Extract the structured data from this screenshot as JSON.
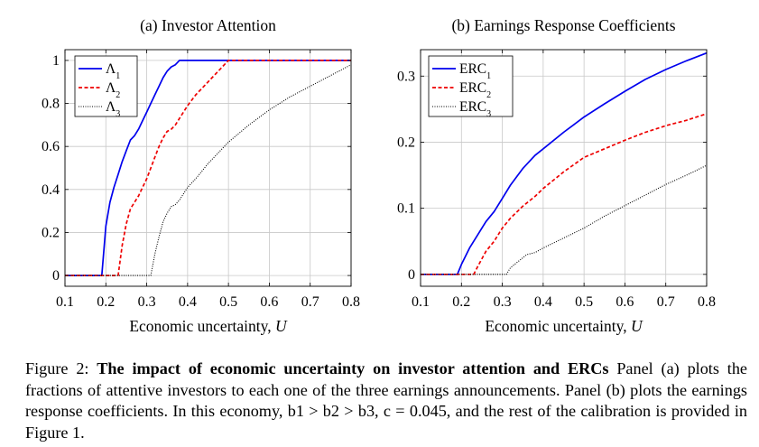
{
  "chart_data": [
    {
      "type": "line",
      "title": "(a) Investor Attention",
      "xlabel": "Economic uncertainty, U",
      "ylabel": "",
      "xlim": [
        0.1,
        0.8
      ],
      "ylim": [
        -0.05,
        1.05
      ],
      "xticks": [
        0.1,
        0.2,
        0.3,
        0.4,
        0.5,
        0.6,
        0.7,
        0.8
      ],
      "yticks": [
        0,
        0.2,
        0.4,
        0.6,
        0.8,
        1
      ],
      "xticklabels": [
        "0.1",
        "0.2",
        "0.3",
        "0.4",
        "0.5",
        "0.6",
        "0.7",
        "0.8"
      ],
      "yticklabels": [
        "0",
        "0.2",
        "0.4",
        "0.6",
        "0.8",
        "1"
      ],
      "grid": true,
      "legend_position": "top-left",
      "series": [
        {
          "name": "Λ1",
          "color": "#0000ee",
          "style": "solid",
          "points": [
            [
              0.1,
              0
            ],
            [
              0.19,
              0
            ],
            [
              0.2,
              0.23
            ],
            [
              0.21,
              0.34
            ],
            [
              0.22,
              0.41
            ],
            [
              0.23,
              0.47
            ],
            [
              0.24,
              0.53
            ],
            [
              0.25,
              0.58
            ],
            [
              0.26,
              0.63
            ],
            [
              0.27,
              0.65
            ],
            [
              0.28,
              0.68
            ],
            [
              0.29,
              0.72
            ],
            [
              0.3,
              0.76
            ],
            [
              0.31,
              0.8
            ],
            [
              0.32,
              0.84
            ],
            [
              0.33,
              0.88
            ],
            [
              0.34,
              0.92
            ],
            [
              0.35,
              0.95
            ],
            [
              0.36,
              0.97
            ],
            [
              0.37,
              0.98
            ],
            [
              0.38,
              1.0
            ],
            [
              0.8,
              1.0
            ]
          ]
        },
        {
          "name": "Λ2",
          "color": "#ee0000",
          "style": "dashed",
          "points": [
            [
              0.1,
              0
            ],
            [
              0.23,
              0
            ],
            [
              0.24,
              0.14
            ],
            [
              0.25,
              0.24
            ],
            [
              0.26,
              0.31
            ],
            [
              0.27,
              0.34
            ],
            [
              0.28,
              0.37
            ],
            [
              0.29,
              0.41
            ],
            [
              0.3,
              0.45
            ],
            [
              0.31,
              0.5
            ],
            [
              0.32,
              0.55
            ],
            [
              0.33,
              0.6
            ],
            [
              0.34,
              0.64
            ],
            [
              0.35,
              0.67
            ],
            [
              0.36,
              0.68
            ],
            [
              0.37,
              0.7
            ],
            [
              0.38,
              0.73
            ],
            [
              0.4,
              0.79
            ],
            [
              0.42,
              0.84
            ],
            [
              0.44,
              0.88
            ],
            [
              0.46,
              0.92
            ],
            [
              0.48,
              0.96
            ],
            [
              0.5,
              1.0
            ],
            [
              0.8,
              1.0
            ]
          ]
        },
        {
          "name": "Λ3",
          "color": "#000000",
          "style": "dotted",
          "points": [
            [
              0.1,
              0
            ],
            [
              0.31,
              0
            ],
            [
              0.32,
              0.1
            ],
            [
              0.33,
              0.18
            ],
            [
              0.34,
              0.25
            ],
            [
              0.35,
              0.29
            ],
            [
              0.36,
              0.32
            ],
            [
              0.37,
              0.33
            ],
            [
              0.38,
              0.35
            ],
            [
              0.4,
              0.41
            ],
            [
              0.42,
              0.45
            ],
            [
              0.45,
              0.52
            ],
            [
              0.5,
              0.62
            ],
            [
              0.55,
              0.7
            ],
            [
              0.6,
              0.77
            ],
            [
              0.65,
              0.83
            ],
            [
              0.7,
              0.88
            ],
            [
              0.75,
              0.93
            ],
            [
              0.8,
              0.98
            ]
          ]
        }
      ]
    },
    {
      "type": "line",
      "title": "(b) Earnings Response Coefficients",
      "xlabel": "Economic uncertainty, U",
      "ylabel": "",
      "xlim": [
        0.1,
        0.8
      ],
      "ylim": [
        -0.018,
        0.34
      ],
      "xticks": [
        0.1,
        0.2,
        0.3,
        0.4,
        0.5,
        0.6,
        0.7,
        0.8
      ],
      "yticks": [
        0,
        0.1,
        0.2,
        0.3
      ],
      "xticklabels": [
        "0.1",
        "0.2",
        "0.3",
        "0.4",
        "0.5",
        "0.6",
        "0.7",
        "0.8"
      ],
      "yticklabels": [
        "0",
        "0.1",
        "0.2",
        "0.3"
      ],
      "grid": true,
      "legend_position": "top-left",
      "series": [
        {
          "name": "ERC1",
          "color": "#0000ee",
          "style": "solid",
          "points": [
            [
              0.1,
              0
            ],
            [
              0.19,
              0
            ],
            [
              0.2,
              0.015
            ],
            [
              0.22,
              0.04
            ],
            [
              0.24,
              0.06
            ],
            [
              0.26,
              0.08
            ],
            [
              0.28,
              0.095
            ],
            [
              0.3,
              0.115
            ],
            [
              0.32,
              0.135
            ],
            [
              0.35,
              0.16
            ],
            [
              0.38,
              0.18
            ],
            [
              0.4,
              0.19
            ],
            [
              0.45,
              0.215
            ],
            [
              0.5,
              0.238
            ],
            [
              0.55,
              0.258
            ],
            [
              0.6,
              0.277
            ],
            [
              0.65,
              0.295
            ],
            [
              0.7,
              0.31
            ],
            [
              0.75,
              0.323
            ],
            [
              0.8,
              0.335
            ]
          ]
        },
        {
          "name": "ERC2",
          "color": "#ee0000",
          "style": "dashed",
          "points": [
            [
              0.1,
              0
            ],
            [
              0.23,
              0
            ],
            [
              0.24,
              0.012
            ],
            [
              0.26,
              0.035
            ],
            [
              0.28,
              0.05
            ],
            [
              0.3,
              0.07
            ],
            [
              0.32,
              0.085
            ],
            [
              0.35,
              0.103
            ],
            [
              0.38,
              0.118
            ],
            [
              0.4,
              0.13
            ],
            [
              0.45,
              0.155
            ],
            [
              0.5,
              0.177
            ],
            [
              0.55,
              0.19
            ],
            [
              0.6,
              0.203
            ],
            [
              0.65,
              0.215
            ],
            [
              0.7,
              0.225
            ],
            [
              0.75,
              0.233
            ],
            [
              0.8,
              0.243
            ]
          ]
        },
        {
          "name": "ERC3",
          "color": "#000000",
          "style": "dotted",
          "points": [
            [
              0.1,
              0
            ],
            [
              0.31,
              0
            ],
            [
              0.32,
              0.01
            ],
            [
              0.34,
              0.02
            ],
            [
              0.36,
              0.03
            ],
            [
              0.38,
              0.033
            ],
            [
              0.4,
              0.04
            ],
            [
              0.45,
              0.055
            ],
            [
              0.5,
              0.07
            ],
            [
              0.55,
              0.088
            ],
            [
              0.6,
              0.104
            ],
            [
              0.65,
              0.12
            ],
            [
              0.7,
              0.136
            ],
            [
              0.75,
              0.15
            ],
            [
              0.8,
              0.165
            ]
          ]
        }
      ]
    }
  ],
  "caption": {
    "label": "Figure 2: ",
    "title": "The impact of economic uncertainty on investor attention and ERCs",
    "body": "Panel (a) plots the fractions of attentive investors to each one of the three earnings announcements. Panel (b) plots the earnings response coefficients. In this economy, b1 > b2 > b3, c = 0.045, and the rest of the calibration is provided in Figure 1."
  }
}
